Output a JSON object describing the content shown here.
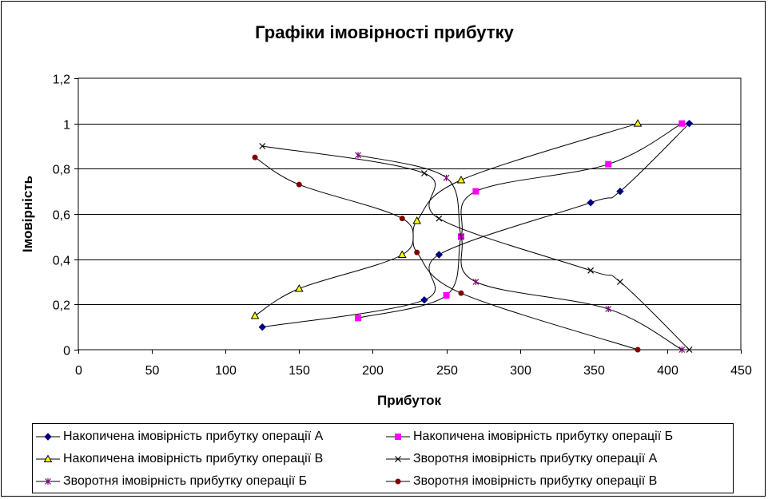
{
  "chart_data": {
    "type": "scatter",
    "title": "Графіки імовірності прибутку",
    "xlabel": "Прибуток",
    "ylabel": "Імовірність",
    "xlim": [
      0,
      450
    ],
    "ylim": [
      0,
      1.2
    ],
    "x_ticks": [
      "0",
      "50",
      "100",
      "150",
      "200",
      "250",
      "300",
      "350",
      "400",
      "450"
    ],
    "y_ticks": [
      "0",
      "0,2",
      "0,4",
      "0,6",
      "0,8",
      "1",
      "1,2"
    ],
    "grid": "horizontal",
    "line_style": "smoothed",
    "legend_position": "bottom",
    "series": [
      {
        "name": "Накопичена імовірність прибутку операції А",
        "marker": "diamond",
        "color": "#000080",
        "points": [
          [
            125,
            0.1
          ],
          [
            235,
            0.22
          ],
          [
            245,
            0.42
          ],
          [
            348,
            0.65
          ],
          [
            368,
            0.7
          ],
          [
            415,
            1.0
          ]
        ]
      },
      {
        "name": "Накопичена імовірність прибутку операції Б",
        "marker": "square",
        "color": "#ff00ff",
        "points": [
          [
            190,
            0.14
          ],
          [
            250,
            0.24
          ],
          [
            260,
            0.5
          ],
          [
            270,
            0.7
          ],
          [
            360,
            0.82
          ],
          [
            410,
            1.0
          ]
        ]
      },
      {
        "name": "Накопичена імовірність прибутку операції В",
        "marker": "triangle",
        "color": "#ffff00",
        "points": [
          [
            120,
            0.15
          ],
          [
            150,
            0.27
          ],
          [
            220,
            0.42
          ],
          [
            230,
            0.57
          ],
          [
            260,
            0.75
          ],
          [
            380,
            1.0
          ]
        ]
      },
      {
        "name": "Зворотня імовірність прибутку операції А",
        "marker": "x",
        "color": "#000000",
        "points": [
          [
            125,
            0.9
          ],
          [
            235,
            0.78
          ],
          [
            245,
            0.58
          ],
          [
            348,
            0.35
          ],
          [
            368,
            0.3
          ],
          [
            415,
            0.0
          ]
        ]
      },
      {
        "name": "Зворотня імовірність прибутку операції Б",
        "marker": "star",
        "color": "#800080",
        "points": [
          [
            190,
            0.86
          ],
          [
            250,
            0.76
          ],
          [
            260,
            0.5
          ],
          [
            270,
            0.3
          ],
          [
            360,
            0.18
          ],
          [
            410,
            0.0
          ]
        ]
      },
      {
        "name": "Зворотня імовірність прибутку операції В",
        "marker": "circle",
        "color": "#800000",
        "points": [
          [
            120,
            0.85
          ],
          [
            150,
            0.73
          ],
          [
            220,
            0.58
          ],
          [
            230,
            0.43
          ],
          [
            260,
            0.25
          ],
          [
            380,
            0.0
          ]
        ]
      }
    ]
  }
}
